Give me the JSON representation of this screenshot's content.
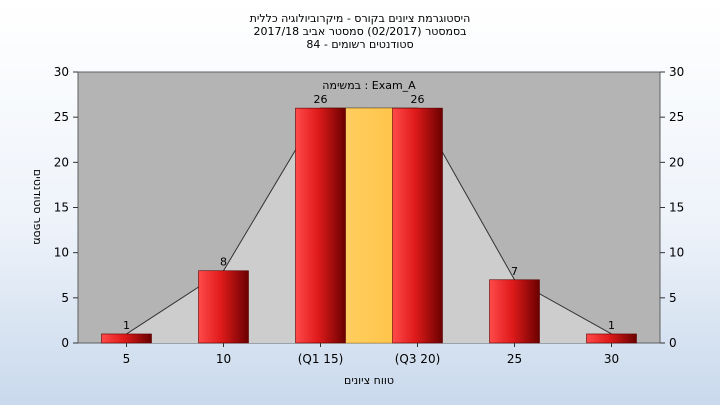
{
  "chart_data": {
    "type": "bar",
    "title_lines": [
      "היסטוגרמת ציונים בקורס - מיקרוביולוגיה כללית",
      "בסמסטר  (02/2017)  סמסטר אביב 2017/18",
      "סטודנטים רשומים - 84"
    ],
    "annotation": "במשימה : Exam_A",
    "categories": [
      "5",
      "10",
      "(Q1 15)",
      "(Q3 20)",
      "25",
      "30"
    ],
    "values": [
      1,
      8,
      26,
      26,
      7,
      1
    ],
    "data_labels": [
      "1",
      "8",
      "26",
      "26",
      "7",
      "1"
    ],
    "xlabel": "טווח ציונים",
    "ylabel": "מספר סטודנטים",
    "ylim": [
      0,
      30
    ],
    "yticks": [
      "0",
      "5",
      "10",
      "15",
      "20",
      "25",
      "30"
    ],
    "grid": false,
    "secondary_y_axis": true,
    "interquartile_band": {
      "from": "(Q1 15)",
      "to": "(Q3 20)",
      "color": "#ffcc55"
    },
    "colors": {
      "bar": "#e02020",
      "bar_dark": "#6a0000",
      "plot_background": "#b4b4b4",
      "trend_area": "#cdcdcd"
    }
  }
}
